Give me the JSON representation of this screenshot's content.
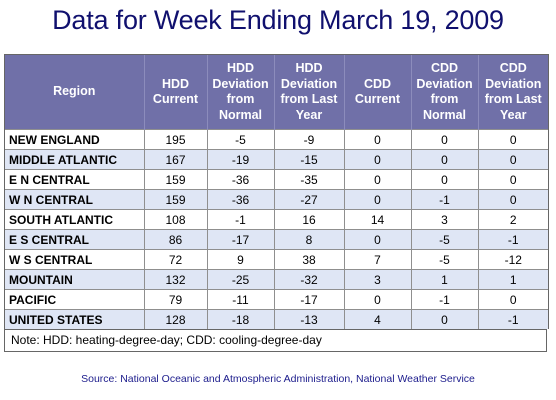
{
  "title": "Data for Week Ending March 19, 2009",
  "table": {
    "headers": [
      "Region",
      "HDD\nCurrent",
      "HDD\nDeviation\nfrom\nNormal",
      "HDD\nDeviation\nfrom Last\nYear",
      "CDD\nCurrent",
      "CDD\nDeviation\nfrom\nNormal",
      "CDD\nDeviation\nfrom Last\nYear"
    ],
    "rows": [
      [
        "NEW ENGLAND",
        "195",
        "-5",
        "-9",
        "0",
        "0",
        "0"
      ],
      [
        "MIDDLE ATLANTIC",
        "167",
        "-19",
        "-15",
        "0",
        "0",
        "0"
      ],
      [
        "E N CENTRAL",
        "159",
        "-36",
        "-35",
        "0",
        "0",
        "0"
      ],
      [
        "W N CENTRAL",
        "159",
        "-36",
        "-27",
        "0",
        "-1",
        "0"
      ],
      [
        "SOUTH ATLANTIC",
        "108",
        "-1",
        "16",
        "14",
        "3",
        "2"
      ],
      [
        "E S CENTRAL",
        "86",
        "-17",
        "8",
        "0",
        "-5",
        "-1"
      ],
      [
        "W S CENTRAL",
        "72",
        "9",
        "38",
        "7",
        "-5",
        "-12"
      ],
      [
        "MOUNTAIN",
        "132",
        "-25",
        "-32",
        "3",
        "1",
        "1"
      ],
      [
        "PACIFIC",
        "79",
        "-11",
        "-17",
        "0",
        "-1",
        "0"
      ],
      [
        "UNITED STATES",
        "128",
        "-18",
        "-13",
        "4",
        "0",
        "-1"
      ]
    ]
  },
  "note": "Note: HDD: heating-degree-day; CDD: cooling-degree-day",
  "source": "Source:  National Oceanic and Atmospheric Administration, National Weather Service",
  "colors": {
    "title": "#10106e",
    "header_bg": "#7070a8",
    "row_alt_bg": "#dfe6f5",
    "source": "#1c1c8c"
  }
}
